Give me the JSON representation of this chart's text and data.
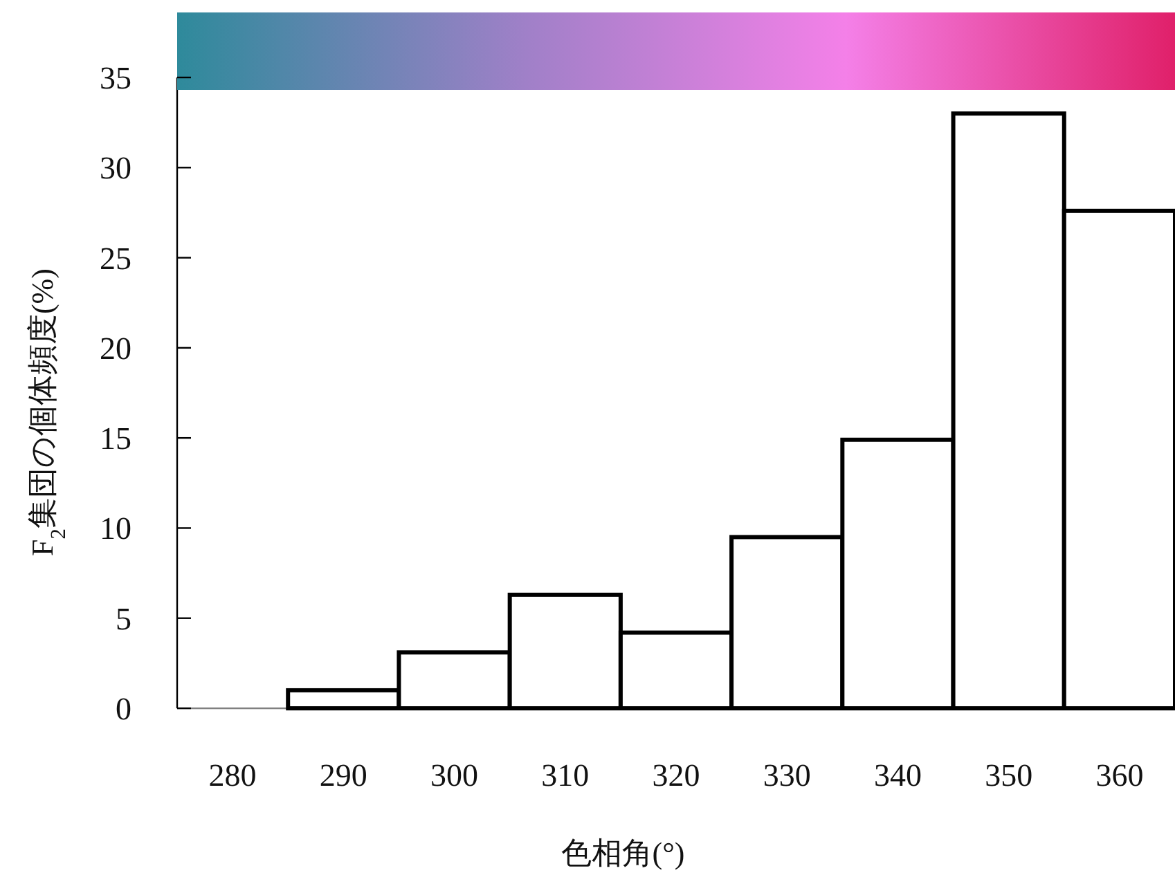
{
  "chart_data": {
    "type": "histogram",
    "xlabel": "色相角(°)",
    "ylabel": "F$_{2}$集団の個体頻度(%)",
    "bins": [
      275,
      285,
      295,
      305,
      315,
      325,
      335,
      345,
      355,
      365
    ],
    "values": [
      0,
      1,
      3.1,
      6.3,
      4.2,
      9.5,
      14.9,
      33,
      27.6
    ],
    "xlim": [
      275,
      365
    ],
    "ylim": [
      0,
      35
    ],
    "xticks": [
      280,
      290,
      300,
      310,
      320,
      330,
      340,
      350,
      360
    ],
    "yticks": [
      0,
      5,
      10,
      15,
      20,
      25,
      30,
      35
    ]
  }
}
